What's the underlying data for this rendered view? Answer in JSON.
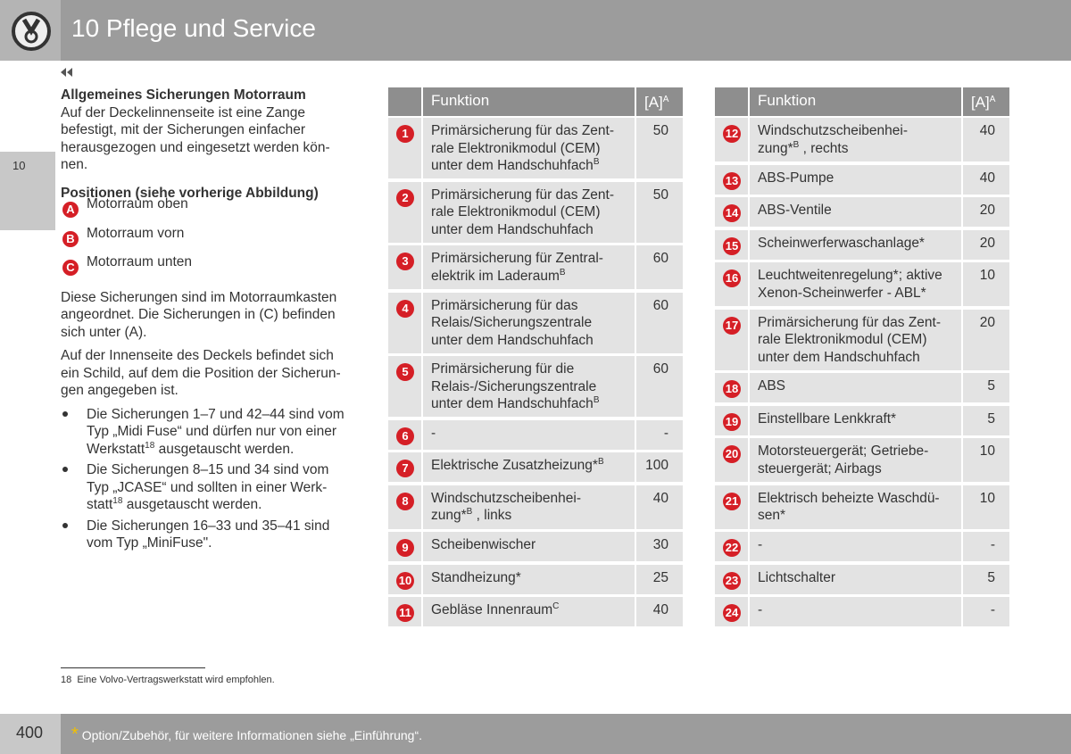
{
  "header": {
    "title": "10 Pflege und Service"
  },
  "side_tab": "10",
  "left": {
    "heading": "Allgemeines Sicherungen Motorraum",
    "intro": [
      [
        "Auf der Deckelinnenseite ist eine Zange"
      ],
      [
        "befestigt, mit der Sicherungen einfacher"
      ],
      [
        "herausgezogen und eingesetzt werden kön-"
      ],
      [
        "nen."
      ]
    ],
    "heading2": "Positionen (siehe vorherige Abbildung)",
    "positions": [
      {
        "letter": "A",
        "text": "Motorraum oben"
      },
      {
        "letter": "B",
        "text": "Motorraum vorn"
      },
      {
        "letter": "C",
        "text": "Motorraum unten"
      }
    ],
    "paragraphs": [
      [
        [
          "Diese Sicherungen sind im Motorraumkasten"
        ],
        [
          "angeordnet. Die Sicherungen in (C) befinden"
        ],
        [
          "sich unter (A)."
        ]
      ],
      [
        [
          "Auf der Innenseite des Deckels befindet sich"
        ],
        [
          "ein Schild, auf dem die Position der Sicherun-"
        ],
        [
          "gen angegeben ist."
        ]
      ]
    ],
    "bullets": [
      [
        [
          "Die Sicherungen 1–7 und 42–44 sind vom"
        ],
        [
          "Typ „Midi Fuse“ und dürfen nur von einer"
        ],
        [
          "Werkstatt",
          {
            "sup": "18"
          },
          " ausgetauscht werden."
        ]
      ],
      [
        [
          "Die Sicherungen 8–15 und 34 sind vom"
        ],
        [
          "Typ „JCASE“ und sollten in einer Werk-"
        ],
        [
          "statt",
          {
            "sup": "18"
          },
          " ausgetauscht werden."
        ]
      ],
      [
        [
          "Die Sicherungen 16–33 und 35–41 sind"
        ],
        [
          "vom Typ „MiniFuse\"."
        ]
      ]
    ]
  },
  "tables": [
    {
      "header": {
        "function": "Funktion",
        "amp": "[A]",
        "amp_sup": "A"
      },
      "rows": [
        {
          "number": 1,
          "lines": [
            [
              "Primärsicherung für das Zent-"
            ],
            [
              "rale Elektronikmodul (CEM)"
            ],
            [
              "unter dem Handschuhfach",
              {
                "sup": "B"
              }
            ]
          ],
          "amp": "50"
        },
        {
          "number": 2,
          "lines": [
            [
              "Primärsicherung für das Zent-"
            ],
            [
              "rale Elektronikmodul (CEM)"
            ],
            [
              "unter dem Handschuhfach"
            ]
          ],
          "amp": "50"
        },
        {
          "number": 3,
          "lines": [
            [
              "Primärsicherung für Zentral-"
            ],
            [
              "elektrik im Laderaum",
              {
                "sup": "B"
              }
            ]
          ],
          "amp": "60"
        },
        {
          "number": 4,
          "lines": [
            [
              "Primärsicherung für das"
            ],
            [
              "Relais/Sicherungszentrale"
            ],
            [
              "unter dem Handschuhfach"
            ]
          ],
          "amp": "60"
        },
        {
          "number": 5,
          "lines": [
            [
              "Primärsicherung für die"
            ],
            [
              "Relais-/Sicherungszentrale"
            ],
            [
              "unter dem Handschuhfach",
              {
                "sup": "B"
              }
            ]
          ],
          "amp": "60"
        },
        {
          "number": 6,
          "lines": [
            [
              "-"
            ]
          ],
          "amp": "-"
        },
        {
          "number": 7,
          "lines": [
            [
              "Elektrische Zusatzheizung*",
              {
                "sup": "B"
              }
            ]
          ],
          "amp": "100"
        },
        {
          "number": 8,
          "lines": [
            [
              "Windschutzscheibenhei-"
            ],
            [
              "zung*",
              {
                "sup": "B"
              },
              " , links"
            ]
          ],
          "amp": "40"
        },
        {
          "number": 9,
          "lines": [
            [
              "Scheibenwischer"
            ]
          ],
          "amp": "30"
        },
        {
          "number": 10,
          "lines": [
            [
              "Standheizung*"
            ]
          ],
          "amp": "25"
        },
        {
          "number": 11,
          "lines": [
            [
              "Gebläse Innenraum",
              {
                "sup": "C"
              }
            ]
          ],
          "amp": "40"
        }
      ]
    },
    {
      "header": {
        "function": "Funktion",
        "amp": "[A]",
        "amp_sup": "A"
      },
      "rows": [
        {
          "number": 12,
          "lines": [
            [
              "Windschutzscheibenhei-"
            ],
            [
              "zung*",
              {
                "sup": "B"
              },
              " , rechts"
            ]
          ],
          "amp": "40"
        },
        {
          "number": 13,
          "lines": [
            [
              "ABS-Pumpe"
            ]
          ],
          "amp": "40"
        },
        {
          "number": 14,
          "lines": [
            [
              "ABS-Ventile"
            ]
          ],
          "amp": "20"
        },
        {
          "number": 15,
          "lines": [
            [
              "Scheinwerferwaschanlage*"
            ]
          ],
          "amp": "20"
        },
        {
          "number": 16,
          "lines": [
            [
              "Leuchtweitenregelung*; aktive"
            ],
            [
              "Xenon-Scheinwerfer - ABL*"
            ]
          ],
          "amp": "10"
        },
        {
          "number": 17,
          "lines": [
            [
              "Primärsicherung für das Zent-"
            ],
            [
              "rale Elektronikmodul (CEM)"
            ],
            [
              "unter dem Handschuhfach"
            ]
          ],
          "amp": "20"
        },
        {
          "number": 18,
          "lines": [
            [
              "ABS"
            ]
          ],
          "amp": "5"
        },
        {
          "number": 19,
          "lines": [
            [
              "Einstellbare Lenkkraft*"
            ]
          ],
          "amp": "5"
        },
        {
          "number": 20,
          "lines": [
            [
              "Motorsteuergerät; Getriebe-"
            ],
            [
              "steuergerät; Airbags"
            ]
          ],
          "amp": "10"
        },
        {
          "number": 21,
          "lines": [
            [
              "Elektrisch beheizte Waschdü-"
            ],
            [
              "sen*"
            ]
          ],
          "amp": "10"
        },
        {
          "number": 22,
          "lines": [
            [
              "-"
            ]
          ],
          "amp": "-"
        },
        {
          "number": 23,
          "lines": [
            [
              "Lichtschalter"
            ]
          ],
          "amp": "5"
        },
        {
          "number": 24,
          "lines": [
            [
              "-"
            ]
          ],
          "amp": "-"
        }
      ]
    }
  ],
  "footnote": {
    "number": "18",
    "text": "Eine Volvo-Vertragswerkstatt wird empfohlen."
  },
  "footer": {
    "page": "400",
    "star": "*",
    "text": "Option/Zubehör, für weitere Informationen siehe „Einführung“."
  }
}
